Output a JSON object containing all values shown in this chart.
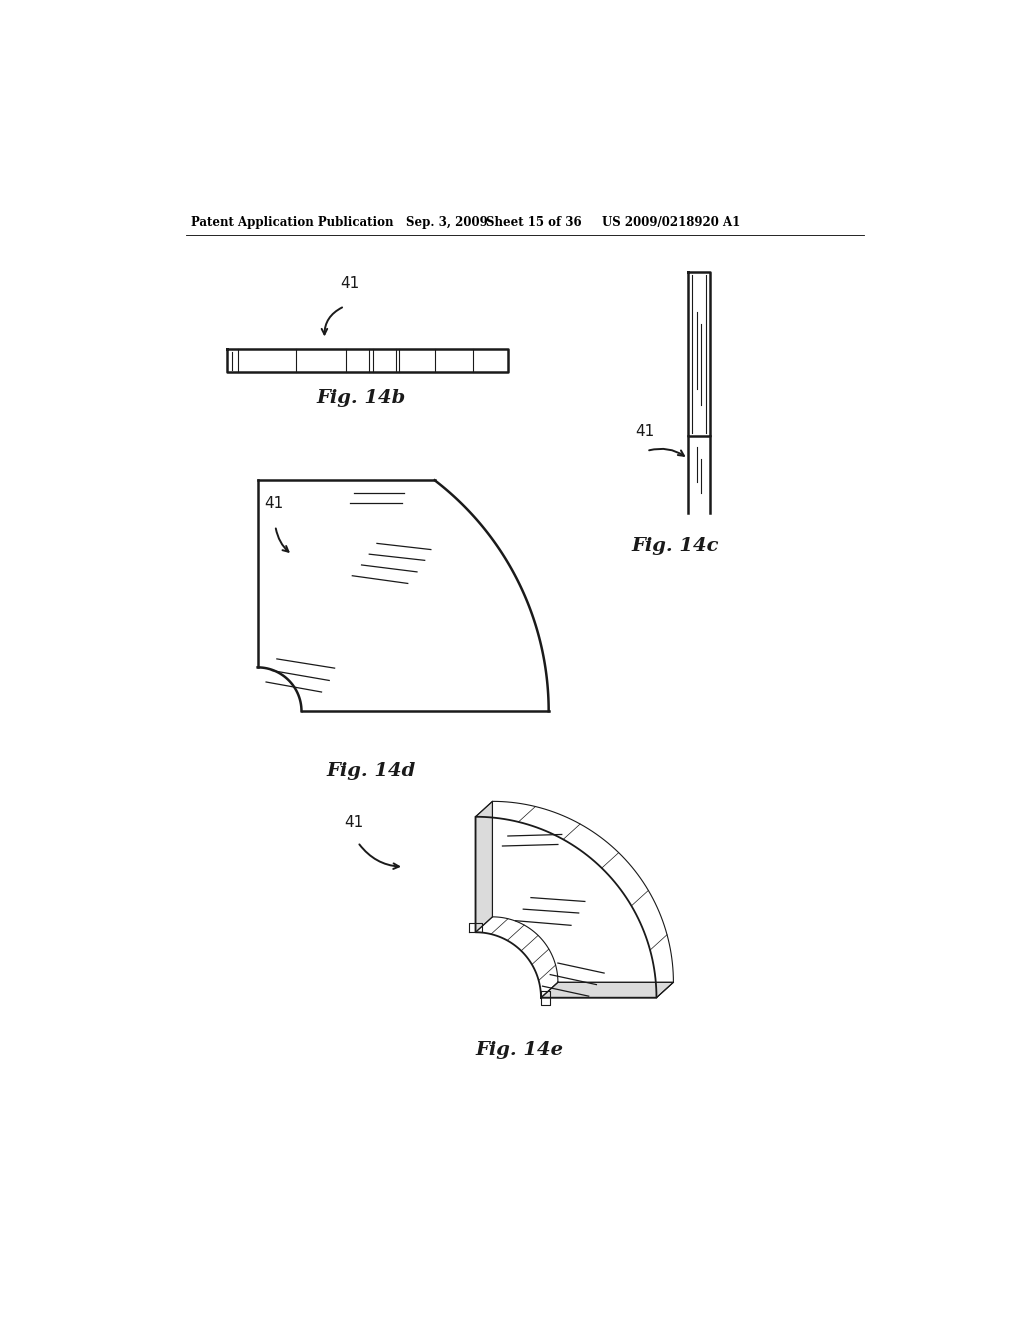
{
  "background_color": "#ffffff",
  "header_text": "Patent Application Publication",
  "header_date": "Sep. 3, 2009",
  "header_sheet": "Sheet 15 of 36",
  "header_patent": "US 2009/0218920 A1",
  "fig14b_label": "Fig. 14b",
  "fig14c_label": "Fig. 14c",
  "fig14d_label": "Fig. 14d",
  "fig14e_label": "Fig. 14e",
  "label_41": "41",
  "line_color": "#1a1a1a"
}
